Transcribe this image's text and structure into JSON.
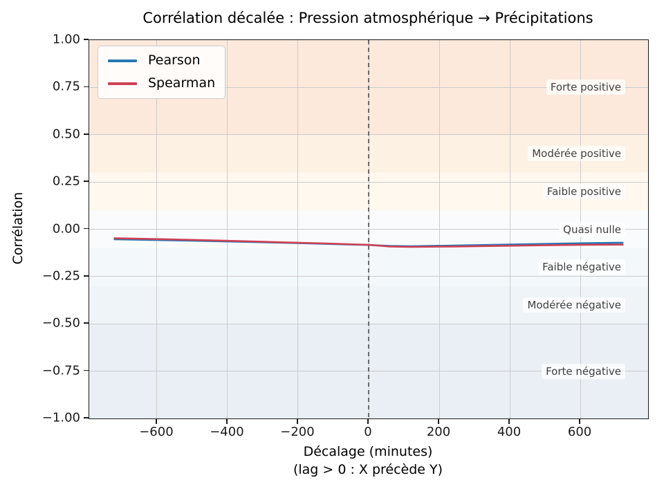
{
  "chart_data": {
    "type": "line",
    "title": "Corrélation décalée : Pression atmosphérique → Précipitations",
    "xlabel": "Décalage (minutes)",
    "xlabel_note": "(lag > 0 : X précède Y)",
    "ylabel": "Corrélation",
    "xlim": [
      -792,
      792
    ],
    "ylim": [
      -1,
      1
    ],
    "grid": true,
    "legend_position": "upper-left",
    "xticks": {
      "values": [
        -600,
        -400,
        -200,
        0,
        200,
        400,
        600
      ],
      "labels": [
        "−600",
        "−400",
        "−200",
        "0",
        "200",
        "400",
        "600"
      ]
    },
    "yticks": {
      "values": [
        1.0,
        0.75,
        0.5,
        0.25,
        0.0,
        -0.25,
        -0.5,
        -0.75,
        -1.0
      ],
      "labels": [
        "1.00",
        "0.75",
        "0.50",
        "0.25",
        "0.00",
        "−0.25",
        "−0.50",
        "−0.75",
        "−1.00"
      ]
    },
    "x": [
      -720,
      -600,
      -480,
      -360,
      -240,
      -120,
      -60,
      0,
      60,
      120,
      240,
      360,
      480,
      600,
      720
    ],
    "series": [
      {
        "name": "Pearson",
        "color": "#2878b4",
        "values": [
          -0.053,
          -0.057,
          -0.061,
          -0.066,
          -0.071,
          -0.077,
          -0.08,
          -0.083,
          -0.088,
          -0.09,
          -0.086,
          -0.082,
          -0.078,
          -0.074,
          -0.071
        ]
      },
      {
        "name": "Spearman",
        "color": "#cd4155",
        "values": [
          -0.047,
          -0.052,
          -0.057,
          -0.063,
          -0.069,
          -0.075,
          -0.079,
          -0.082,
          -0.091,
          -0.093,
          -0.091,
          -0.088,
          -0.085,
          -0.082,
          -0.081
        ]
      }
    ],
    "bands": [
      {
        "label": "Forte positive",
        "from": 0.5,
        "to": 1.0,
        "color": "#fce9dc",
        "label_at": 0.75
      },
      {
        "label": "Modérée positive",
        "from": 0.3,
        "to": 0.5,
        "color": "#fdf1e3",
        "label_at": 0.4
      },
      {
        "label": "Faible positive",
        "from": 0.1,
        "to": 0.3,
        "color": "#fef8ef",
        "label_at": 0.2
      },
      {
        "label": "Quasi nulle",
        "from": -0.1,
        "to": 0.1,
        "color": "#fafbfc",
        "label_at": 0.0
      },
      {
        "label": "Faible négative",
        "from": -0.3,
        "to": -0.1,
        "color": "#f3f8fa",
        "label_at": -0.2
      },
      {
        "label": "Modérée négative",
        "from": -0.5,
        "to": -0.3,
        "color": "#eef4f8",
        "label_at": -0.4
      },
      {
        "label": "Forte négative",
        "from": -1.0,
        "to": -0.5,
        "color": "#e9eff5",
        "label_at": -0.75
      }
    ],
    "zero_line": {
      "x": 0,
      "color": "#4a4a4a",
      "dash": [
        6,
        5
      ],
      "width": 1.6
    }
  }
}
